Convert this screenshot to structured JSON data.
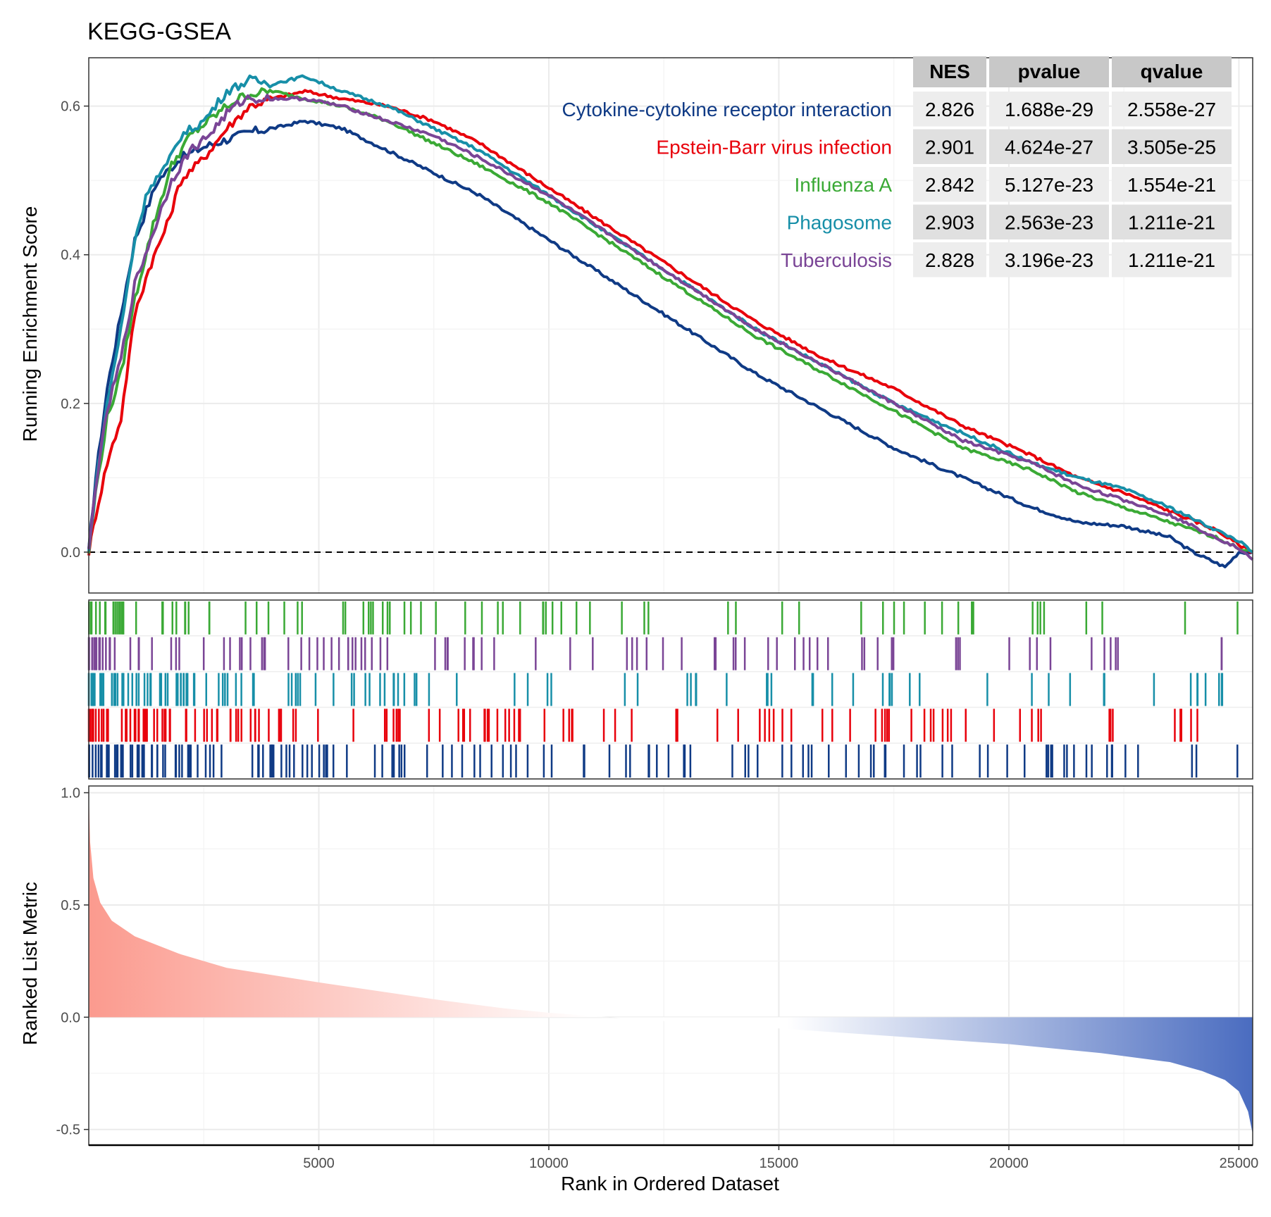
{
  "chart_data": {
    "type": "line",
    "title": "KEGG-GSEA",
    "xlabel": "Rank in Ordered Dataset",
    "xlim": [
      0,
      25300
    ],
    "x_ticks": [
      5000,
      10000,
      15000,
      20000,
      25000
    ],
    "grid": true,
    "legend_placement": "top-right",
    "panels": {
      "running_score": {
        "ylabel": "Running Enrichment Score",
        "ylim": [
          -0.055,
          0.665
        ],
        "y_ticks": [
          0.0,
          0.2,
          0.4,
          0.6
        ],
        "y_tick_labels": [
          "0.0",
          "0.2",
          "0.4",
          "0.6"
        ],
        "zero_line": "dashed"
      },
      "ranked_metric": {
        "ylabel": "Ranked List Metric",
        "ylim": [
          -0.57,
          1.03
        ],
        "y_ticks": [
          -0.5,
          0.0,
          0.5,
          1.0
        ],
        "y_tick_labels": [
          "-0.5",
          "0.0",
          "0.5",
          "1.0"
        ],
        "x": [
          0,
          30,
          100,
          250,
          500,
          1000,
          2000,
          3000,
          5000,
          7500,
          9000,
          10000,
          12000,
          15000,
          17500,
          20000,
          22000,
          23500,
          24200,
          24700,
          25000,
          25200,
          25300
        ],
        "y": [
          1.0,
          0.78,
          0.62,
          0.51,
          0.43,
          0.36,
          0.28,
          0.22,
          0.155,
          0.08,
          0.04,
          0.02,
          -0.01,
          -0.05,
          -0.085,
          -0.12,
          -0.16,
          -0.2,
          -0.24,
          -0.28,
          -0.33,
          -0.42,
          -0.52
        ],
        "positive_color": "#fb9a8e",
        "negative_color": "#4a6cc0"
      }
    },
    "table": {
      "headers": [
        "NES",
        "pvalue",
        "qvalue"
      ]
    },
    "series": [
      {
        "name": "Cytokine-cytokine receptor interaction",
        "color": "#0f3a85",
        "nes": "2.826",
        "pvalue": "1.688e-29",
        "qvalue": "2.558e-27",
        "x": [
          0,
          150,
          400,
          700,
          1000,
          1500,
          2000,
          2500,
          3000,
          3500,
          4000,
          4700,
          5500,
          6500,
          7500,
          8500,
          10000,
          11500,
          13000,
          14500,
          16000,
          17500,
          19000,
          20500,
          21500,
          22500,
          23500,
          24000,
          24700,
          25000,
          25300
        ],
        "y": [
          0.0,
          0.1,
          0.22,
          0.32,
          0.42,
          0.5,
          0.53,
          0.545,
          0.555,
          0.565,
          0.57,
          0.58,
          0.57,
          0.54,
          0.51,
          0.48,
          0.42,
          0.36,
          0.3,
          0.24,
          0.19,
          0.14,
          0.1,
          0.06,
          0.04,
          0.035,
          0.02,
          0.0,
          -0.02,
          0.0,
          0.0
        ]
      },
      {
        "name": "Epstein-Barr virus infection",
        "color": "#e8000b",
        "nes": "2.901",
        "pvalue": "4.624e-27",
        "qvalue": "3.505e-25",
        "x": [
          0,
          150,
          400,
          700,
          1000,
          1300,
          1700,
          2000,
          2500,
          3000,
          3500,
          4000,
          4700,
          5500,
          6500,
          7500,
          8500,
          10000,
          11500,
          13000,
          14500,
          16000,
          17500,
          19000,
          20500,
          21500,
          22500,
          23500,
          24500,
          25000,
          25300
        ],
        "y": [
          0.0,
          0.05,
          0.12,
          0.18,
          0.32,
          0.38,
          0.44,
          0.5,
          0.53,
          0.57,
          0.6,
          0.61,
          0.62,
          0.61,
          0.6,
          0.58,
          0.55,
          0.49,
          0.43,
          0.37,
          0.31,
          0.26,
          0.22,
          0.17,
          0.13,
          0.1,
          0.08,
          0.055,
          0.03,
          0.01,
          0.0
        ]
      },
      {
        "name": "Influenza A",
        "color": "#3aa935",
        "nes": "2.842",
        "pvalue": "5.127e-23",
        "qvalue": "1.554e-21",
        "x": [
          0,
          150,
          400,
          700,
          1000,
          1400,
          1800,
          2200,
          2600,
          3000,
          3400,
          4000,
          4700,
          5500,
          6500,
          7500,
          8500,
          10000,
          11500,
          13000,
          14500,
          16000,
          17500,
          19000,
          20500,
          21500,
          22500,
          23500,
          24500,
          25000,
          25300
        ],
        "y": [
          0.0,
          0.08,
          0.18,
          0.24,
          0.34,
          0.44,
          0.52,
          0.56,
          0.58,
          0.6,
          0.615,
          0.62,
          0.61,
          0.6,
          0.58,
          0.55,
          0.52,
          0.47,
          0.41,
          0.35,
          0.29,
          0.24,
          0.19,
          0.14,
          0.11,
          0.08,
          0.06,
          0.04,
          0.02,
          0.005,
          0.0
        ]
      },
      {
        "name": "Phagosome",
        "color": "#178fa8",
        "nes": "2.903",
        "pvalue": "2.563e-23",
        "qvalue": "1.211e-21",
        "x": [
          0,
          150,
          400,
          700,
          1000,
          1300,
          1700,
          2000,
          2500,
          3000,
          3500,
          4000,
          4700,
          5500,
          6500,
          7500,
          8500,
          10000,
          11500,
          13000,
          14500,
          16000,
          17500,
          19000,
          20500,
          21500,
          22500,
          23500,
          24500,
          25000,
          25300
        ],
        "y": [
          0.0,
          0.09,
          0.2,
          0.3,
          0.42,
          0.49,
          0.52,
          0.56,
          0.58,
          0.62,
          0.635,
          0.63,
          0.64,
          0.62,
          0.6,
          0.57,
          0.54,
          0.48,
          0.42,
          0.36,
          0.3,
          0.25,
          0.2,
          0.16,
          0.12,
          0.1,
          0.085,
          0.06,
          0.03,
          0.015,
          0.0
        ]
      },
      {
        "name": "Tuberculosis",
        "color": "#7a4596",
        "nes": "2.828",
        "pvalue": "3.196e-23",
        "qvalue": "1.211e-21",
        "x": [
          0,
          150,
          400,
          700,
          1000,
          1400,
          1800,
          2200,
          2600,
          3000,
          3400,
          4000,
          4700,
          5500,
          6500,
          7500,
          8500,
          10000,
          11500,
          13000,
          14500,
          16000,
          17500,
          19000,
          20500,
          21500,
          22500,
          23500,
          24500,
          25000,
          25300
        ],
        "y": [
          0.0,
          0.09,
          0.19,
          0.26,
          0.36,
          0.43,
          0.5,
          0.54,
          0.56,
          0.59,
          0.61,
          0.61,
          0.61,
          0.6,
          0.58,
          0.56,
          0.53,
          0.48,
          0.42,
          0.36,
          0.3,
          0.25,
          0.2,
          0.15,
          0.12,
          0.09,
          0.07,
          0.05,
          0.02,
          0.005,
          -0.01
        ]
      }
    ]
  }
}
